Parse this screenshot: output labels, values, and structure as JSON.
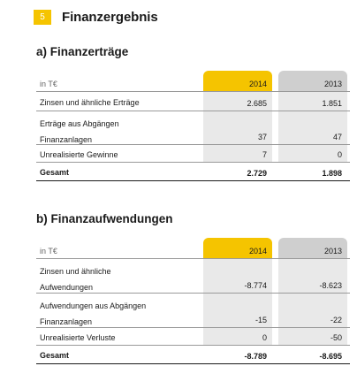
{
  "header": {
    "badge": "5",
    "title": "Finanzergebnis"
  },
  "table_a": {
    "title": "a) Finanzerträge",
    "unit_label": "in T€",
    "col_2014": "2014",
    "col_2013": "2013",
    "rows": [
      {
        "label": [
          "Zinsen und ähnliche Erträge"
        ],
        "v2014": "2.685",
        "v2013": "1.851"
      },
      {
        "label": [
          "Erträge aus Abgängen",
          "Finanzanlagen"
        ],
        "v2014": "37",
        "v2013": "47"
      },
      {
        "label": [
          "Unrealisierte Gewinne"
        ],
        "v2014": "7",
        "v2013": "0"
      }
    ],
    "total": {
      "label": "Gesamt",
      "v2014": "2.729",
      "v2013": "1.898"
    }
  },
  "table_b": {
    "title": "b) Finanzaufwendungen",
    "unit_label": "in T€",
    "col_2014": "2014",
    "col_2013": "2013",
    "rows": [
      {
        "label": [
          "Zinsen und ähnliche",
          "Aufwendungen"
        ],
        "v2014": "-8.774",
        "v2013": "-8.623"
      },
      {
        "label": [
          "Aufwendungen aus Abgängen",
          "Finanzanlagen"
        ],
        "v2014": "-15",
        "v2013": "-22"
      },
      {
        "label": [
          "Unrealisierte Verluste"
        ],
        "v2014": "0",
        "v2013": "-50"
      }
    ],
    "total": {
      "label": "Gesamt",
      "v2014": "-8.789",
      "v2013": "-8.695"
    }
  }
}
